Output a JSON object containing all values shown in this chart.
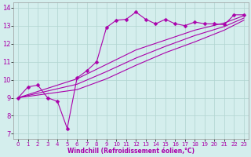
{
  "xlabel": "Windchill (Refroidissement éolien,°C)",
  "bg_color": "#d4eeed",
  "grid_color": "#b0d4d0",
  "line_color": "#aa00aa",
  "xlim": [
    -0.5,
    23.5
  ],
  "ylim": [
    6.7,
    14.3
  ],
  "xticks": [
    0,
    1,
    2,
    3,
    4,
    5,
    6,
    7,
    8,
    9,
    10,
    11,
    12,
    13,
    14,
    15,
    16,
    17,
    18,
    19,
    20,
    21,
    22,
    23
  ],
  "yticks": [
    7,
    8,
    9,
    10,
    11,
    12,
    13,
    14
  ],
  "line1_x": [
    0,
    1,
    2,
    3,
    4,
    5,
    6,
    7,
    8,
    9,
    10,
    11,
    12,
    13,
    14,
    15,
    16,
    17,
    18,
    19,
    20,
    21,
    22,
    23
  ],
  "line1_y": [
    9.0,
    9.6,
    9.7,
    9.0,
    8.8,
    7.3,
    10.1,
    10.5,
    11.0,
    12.9,
    13.3,
    13.35,
    13.75,
    13.35,
    13.1,
    13.35,
    13.1,
    13.0,
    13.2,
    13.1,
    13.1,
    13.05,
    13.6,
    13.6
  ],
  "line2_x": [
    0,
    6,
    9,
    12,
    15,
    18,
    21,
    23
  ],
  "line2_y": [
    9.0,
    10.05,
    10.85,
    11.65,
    12.2,
    12.75,
    13.15,
    13.55
  ],
  "line3_x": [
    0,
    6,
    9,
    12,
    15,
    18,
    21,
    23
  ],
  "line3_y": [
    9.0,
    9.75,
    10.45,
    11.2,
    11.85,
    12.45,
    12.95,
    13.42
  ],
  "line4_x": [
    0,
    6,
    9,
    12,
    15,
    18,
    21,
    23
  ],
  "line4_y": [
    9.0,
    9.45,
    10.05,
    10.8,
    11.5,
    12.1,
    12.75,
    13.3
  ],
  "marker": "D",
  "marker_size": 2.5,
  "line_width": 0.8,
  "tick_fontsize": 5,
  "xlabel_fontsize": 5.5
}
